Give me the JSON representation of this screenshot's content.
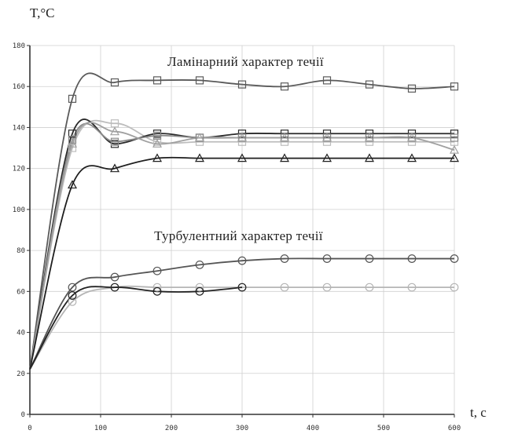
{
  "chart_data": {
    "type": "line",
    "ylabel": "T,°C",
    "xlabel": "t, c",
    "xlim": [
      0,
      600
    ],
    "ylim": [
      0,
      180
    ],
    "xticks": [
      0,
      100,
      200,
      300,
      400,
      500,
      600
    ],
    "yticks": [
      0,
      20,
      40,
      60,
      80,
      100,
      120,
      140,
      160,
      180
    ],
    "grid": true,
    "annotations": [
      {
        "text": "Ламінарний характер течії",
        "x": 305,
        "y": 170
      },
      {
        "text": "Турбулентний характер течії",
        "x": 295,
        "y": 85
      }
    ],
    "series": [
      {
        "color": "#5a5a5a",
        "marker": "square",
        "x": [
          0,
          60,
          120,
          180,
          240,
          300,
          360,
          420,
          480,
          540,
          600
        ],
        "y": [
          22,
          154,
          162,
          163,
          163,
          161,
          160,
          163,
          161,
          159,
          160
        ]
      },
      {
        "color": "#bdbdbd",
        "marker": "square",
        "x": [
          0,
          60,
          120,
          180,
          240,
          300,
          360,
          420,
          480,
          540,
          600
        ],
        "y": [
          22,
          130,
          142,
          133,
          133,
          133,
          133,
          133,
          133,
          133,
          133
        ]
      },
      {
        "color": "#2a2a2a",
        "marker": "square",
        "x": [
          0,
          60,
          120,
          180,
          240,
          300,
          360,
          420,
          480,
          540,
          600
        ],
        "y": [
          22,
          137,
          132,
          137,
          135,
          137,
          137,
          137,
          137,
          137,
          137
        ]
      },
      {
        "color": "#8a8a8a",
        "marker": "square",
        "x": [
          0,
          60,
          120,
          180,
          240,
          300,
          360,
          420,
          480,
          540,
          600
        ],
        "y": [
          22,
          134,
          133,
          136,
          135,
          135,
          135,
          135,
          135,
          135,
          135
        ]
      },
      {
        "color": "#a0a0a0",
        "marker": "triangle",
        "x": [
          0,
          60,
          120,
          180,
          240,
          300,
          360,
          420,
          480,
          540,
          600
        ],
        "y": [
          22,
          132,
          138,
          132,
          135,
          135,
          135,
          135,
          135,
          135,
          129
        ]
      },
      {
        "color": "#1e1e1e",
        "marker": "triangle",
        "x": [
          0,
          60,
          120,
          180,
          240,
          300,
          360,
          420,
          480,
          540,
          600
        ],
        "y": [
          22,
          112,
          120,
          125,
          125,
          125,
          125,
          125,
          125,
          125,
          125
        ]
      },
      {
        "color": "#555555",
        "marker": "circle",
        "x": [
          0,
          60,
          120,
          180,
          240,
          300,
          360,
          420,
          480,
          540,
          600
        ],
        "y": [
          22,
          62,
          67,
          70,
          73,
          75,
          76,
          76,
          76,
          76,
          76
        ]
      },
      {
        "color": "#b5b5b5",
        "marker": "circle",
        "x": [
          0,
          60,
          120,
          180,
          240,
          300,
          360,
          420,
          480,
          540,
          600
        ],
        "y": [
          22,
          55,
          62,
          62,
          62,
          62,
          62,
          62,
          62,
          62,
          62
        ]
      },
      {
        "color": "#222222",
        "marker": "circle",
        "x": [
          0,
          60,
          120,
          180,
          240,
          300
        ],
        "y": [
          22,
          58,
          62,
          60,
          60,
          62
        ]
      }
    ]
  }
}
